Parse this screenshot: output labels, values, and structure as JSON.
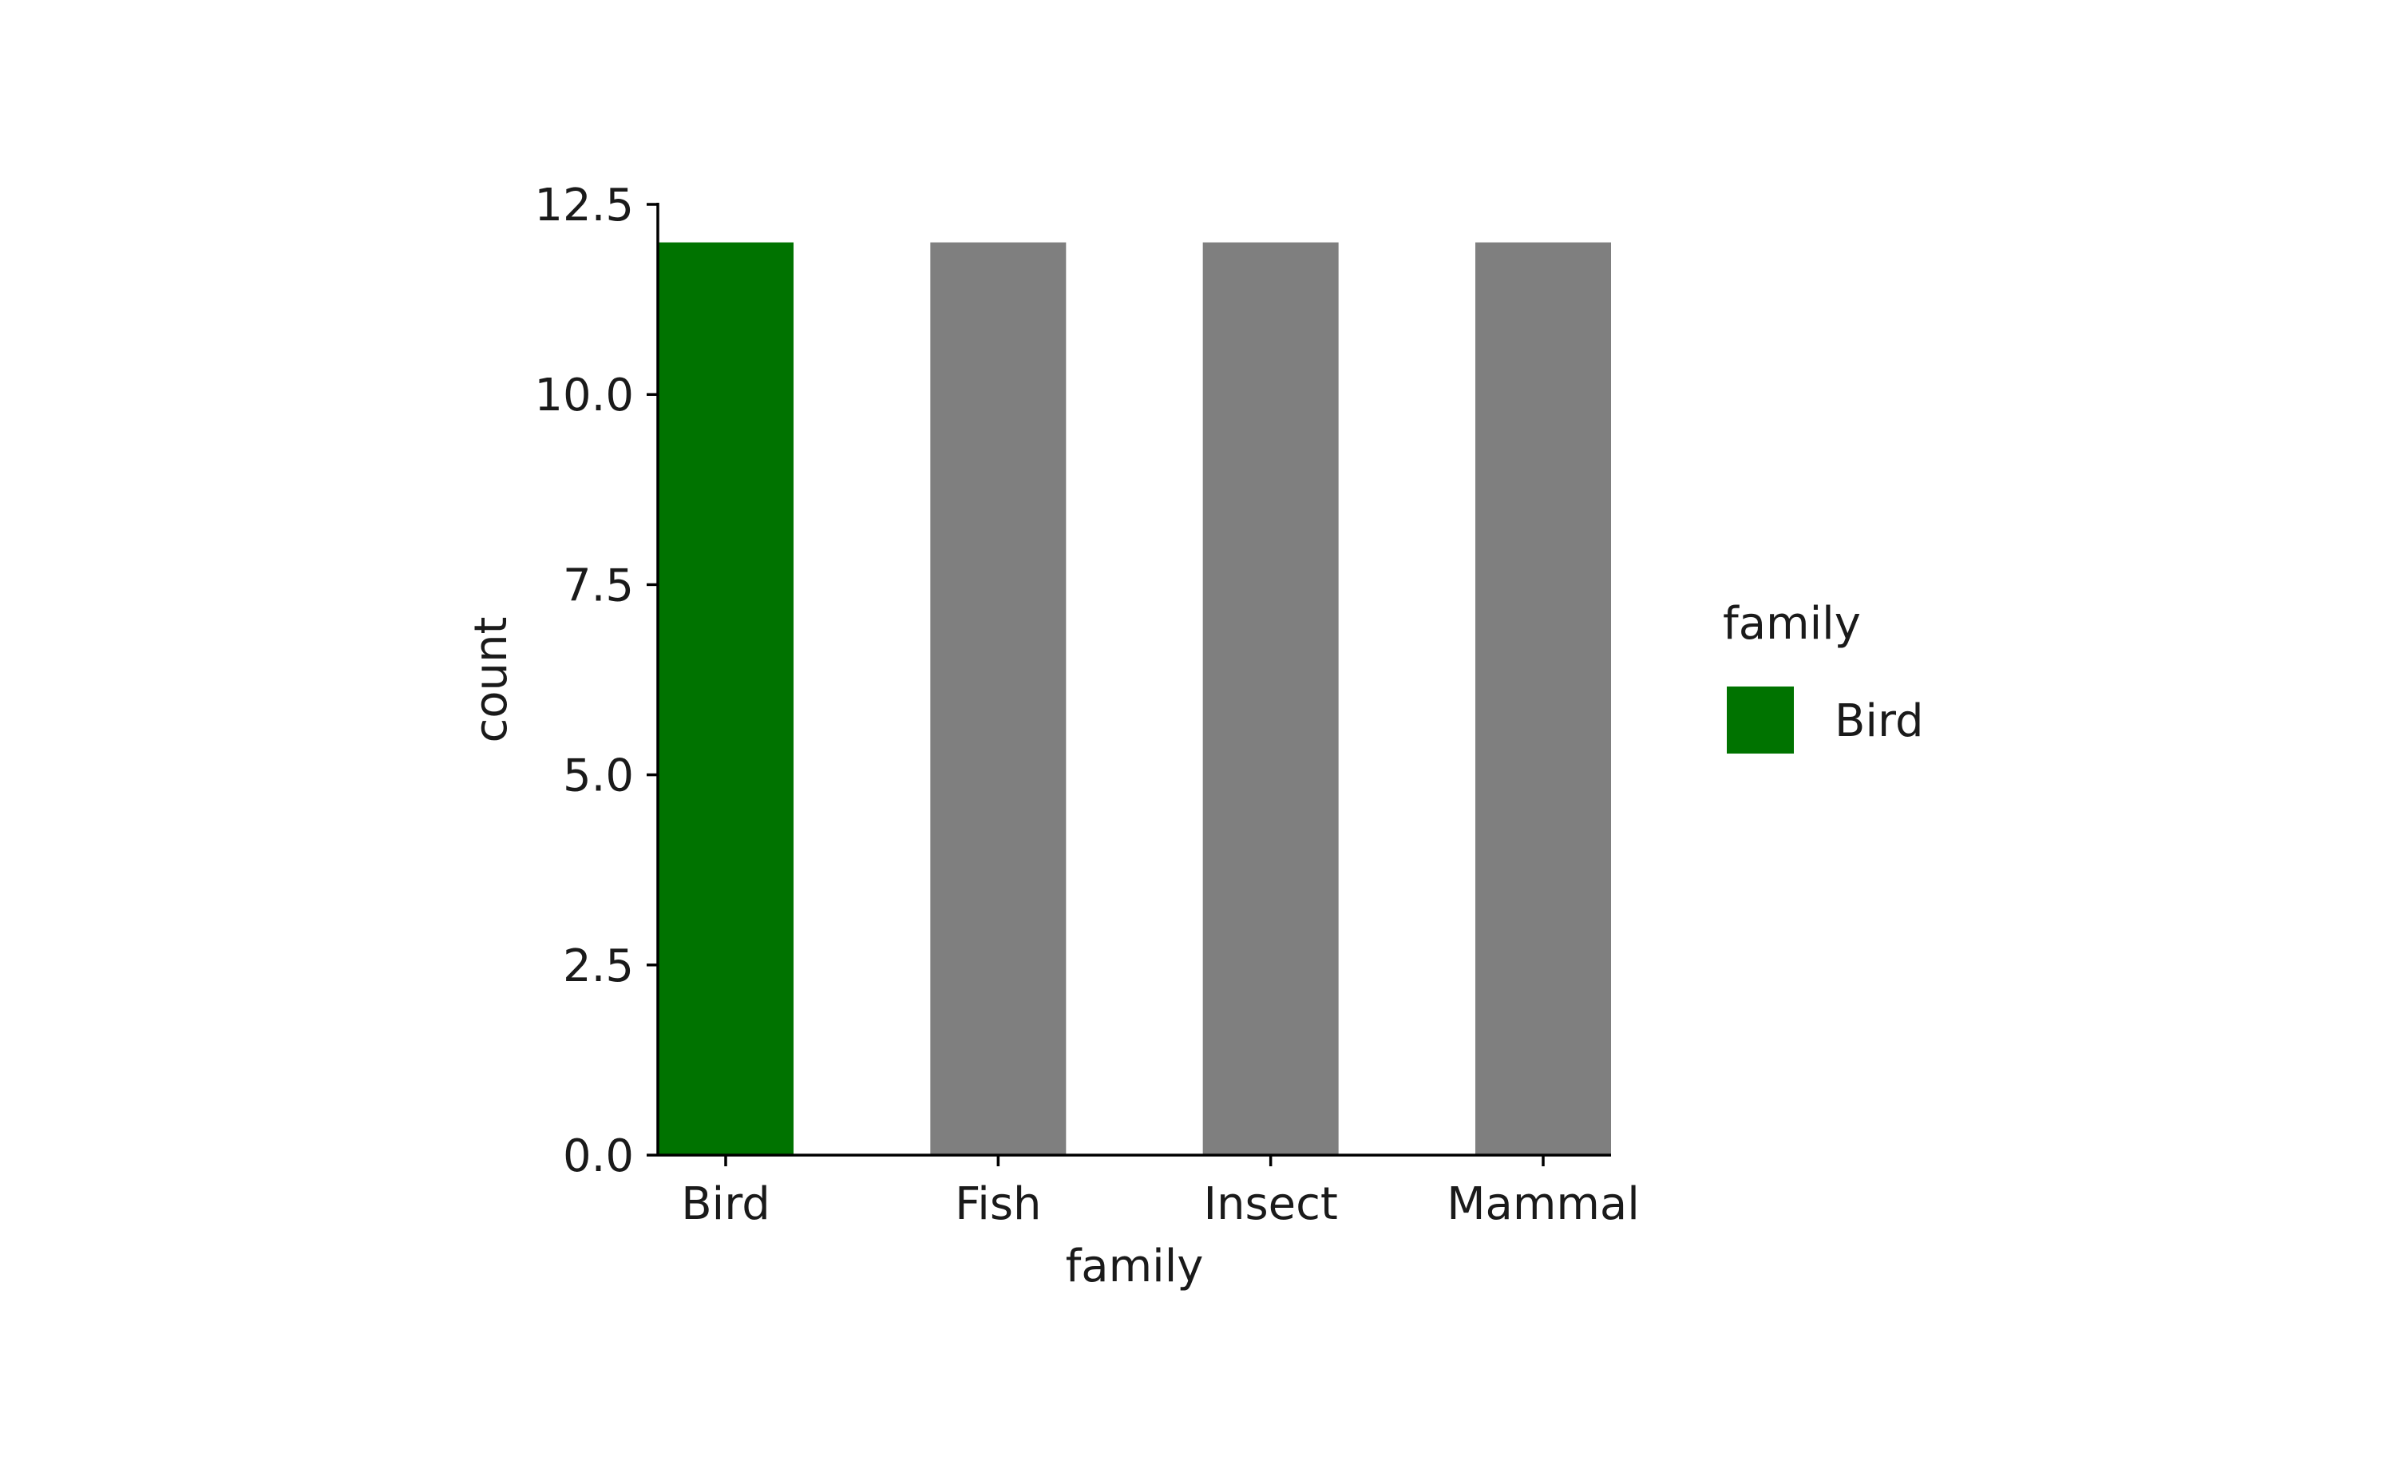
{
  "chart_data": {
    "type": "bar",
    "categories": [
      "Bird",
      "Fish",
      "Insect",
      "Mammal"
    ],
    "values": [
      12,
      12,
      12,
      12
    ],
    "title": "",
    "xlabel": "family",
    "ylabel": "count",
    "ylim": [
      0,
      12.5
    ],
    "yticks": [
      "0.0",
      "2.5",
      "5.0",
      "7.5",
      "10.0",
      "12.5"
    ],
    "highlight": "Bird",
    "colors": {
      "highlight": "#007300",
      "default": "#7f7f7f",
      "axis": "#000000"
    },
    "grid": false,
    "legend": {
      "title": "family",
      "placement": "right",
      "items": [
        {
          "label": "Bird",
          "color": "#007300"
        }
      ]
    }
  }
}
